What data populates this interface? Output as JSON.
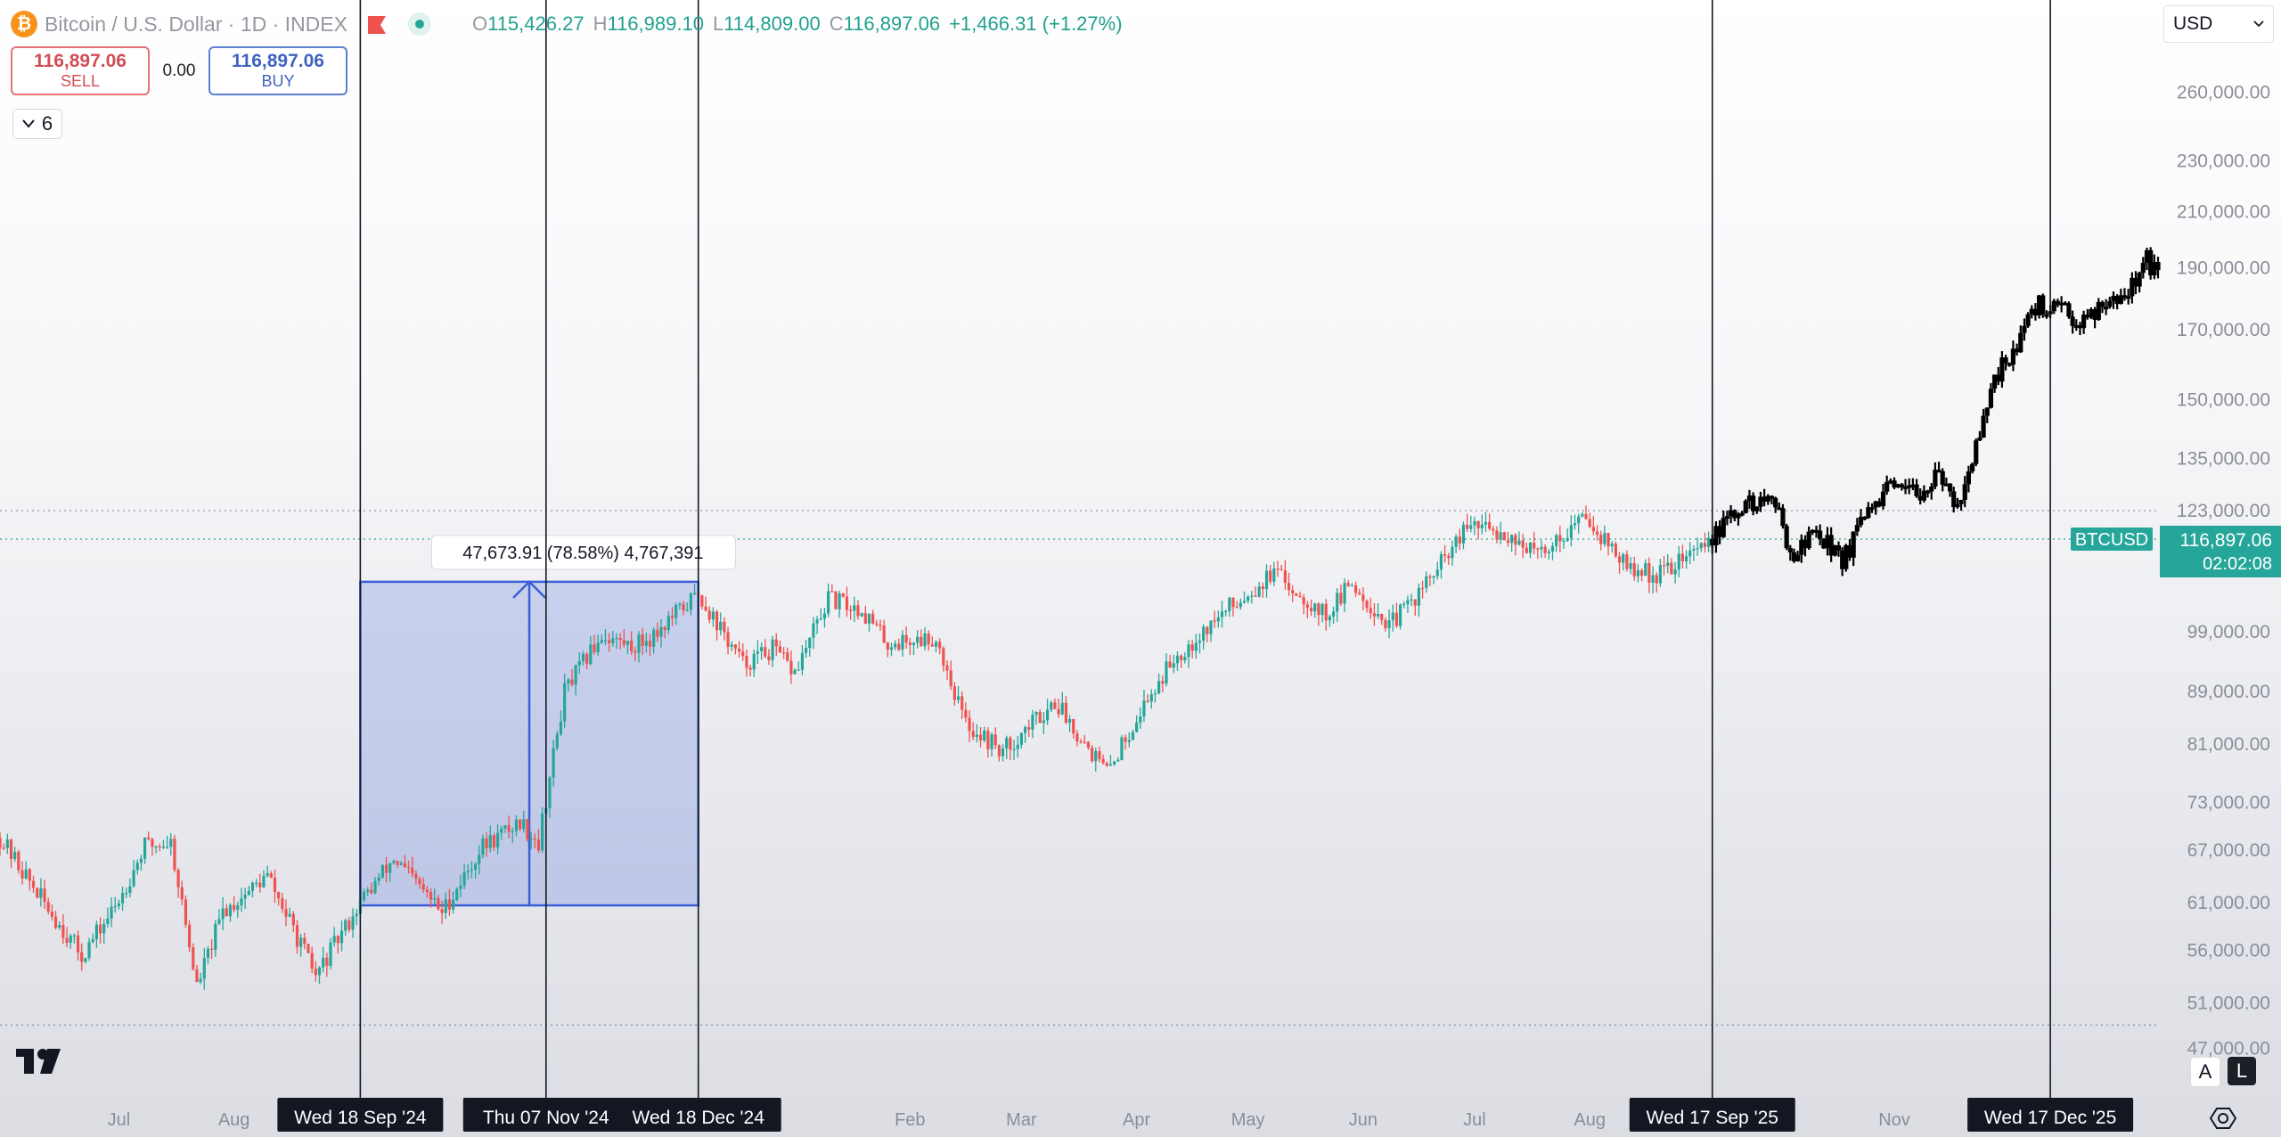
{
  "header": {
    "symbol_title": "Bitcoin / U.S. Dollar · 1D · INDEX",
    "btc_icon_glyph": "₿",
    "ohlc": [
      {
        "k": "O",
        "v": "115,426.27"
      },
      {
        "k": "H",
        "v": "116,989.10"
      },
      {
        "k": "L",
        "v": "114,809.00"
      },
      {
        "k": "C",
        "v": "116,897.06"
      }
    ],
    "change": "+1,466.31 (+1.27%)"
  },
  "trade": {
    "sell_price": "116,897.06",
    "sell_label": "SELL",
    "spread": "0.00",
    "buy_price": "116,897.06",
    "buy_label": "BUY"
  },
  "indicators": {
    "count": "6"
  },
  "currency": {
    "label": "USD"
  },
  "scale_buttons": {
    "auto": "A",
    "log": "L"
  },
  "colors": {
    "up": "#26a69a",
    "down": "#ef5350",
    "measure": "#3b5fd9",
    "projection": "#000000",
    "price_tag": "#26a69a"
  },
  "chart_data": {
    "type": "candlestick",
    "symbol": "BTCUSD",
    "interval": "1D",
    "y_scale": "log",
    "ylim": [
      46000,
      285000
    ],
    "y_ticks": [
      260000,
      230000,
      210000,
      190000,
      170000,
      150000,
      135000,
      123000,
      99000,
      89000,
      81000,
      73000,
      67000,
      61000,
      56000,
      51000,
      47000
    ],
    "y_tick_labels": [
      "260,000.00",
      "230,000.00",
      "210,000.00",
      "190,000.00",
      "170,000.00",
      "150,000.00",
      "135,000.00",
      "123,000.00",
      "99,000.00",
      "89,000.00",
      "81,000.00",
      "73,000.00",
      "67,000.00",
      "61,000.00",
      "56,000.00",
      "51,000.00",
      "47,000.00"
    ],
    "x_range": [
      "2024-06-13",
      "2026-01-15"
    ],
    "x_month_labels": [
      {
        "date": "2024-07-15",
        "label": "Jul"
      },
      {
        "date": "2024-08-15",
        "label": "Aug"
      },
      {
        "date": "2025-02-13",
        "label": "Feb"
      },
      {
        "date": "2025-03-15",
        "label": "Mar"
      },
      {
        "date": "2025-04-15",
        "label": "Apr"
      },
      {
        "date": "2025-05-15",
        "label": "May"
      },
      {
        "date": "2025-06-15",
        "label": "Jun"
      },
      {
        "date": "2025-07-15",
        "label": "Jul"
      },
      {
        "date": "2025-08-15",
        "label": "Aug"
      },
      {
        "date": "2025-11-05",
        "label": "Nov"
      }
    ],
    "vertical_markers": [
      {
        "date": "2024-09-18",
        "label": "Wed 18 Sep '24"
      },
      {
        "date": "2024-11-07",
        "label": "Thu 07 Nov '24"
      },
      {
        "date": "2024-12-18",
        "label": "Wed 18 Dec '24"
      },
      {
        "date": "2025-09-17",
        "label": "Wed 17 Sep '25"
      },
      {
        "date": "2025-12-17",
        "label": "Wed 17 Dec '25"
      }
    ],
    "horizontal_lines": [
      123000,
      49000
    ],
    "current_price": {
      "value": 116897.06,
      "label": "116,897.06",
      "countdown": "02:02:08",
      "tag": "BTCUSD"
    },
    "measure": {
      "from_date": "2024-09-18",
      "to_date": "2024-12-18",
      "low": 60700,
      "high": 108300,
      "label": "47,673.91 (78.58%) 4,767,391"
    },
    "price_path": [
      [
        "2024-06-13",
        68500
      ],
      [
        "2024-06-24",
        61500
      ],
      [
        "2024-07-05",
        55500
      ],
      [
        "2024-07-14",
        60500
      ],
      [
        "2024-07-22",
        67500
      ],
      [
        "2024-07-29",
        68000
      ],
      [
        "2024-08-05",
        52500
      ],
      [
        "2024-08-12",
        60000
      ],
      [
        "2024-08-24",
        64000
      ],
      [
        "2024-09-06",
        53500
      ],
      [
        "2024-09-18",
        61000
      ],
      [
        "2024-09-27",
        66000
      ],
      [
        "2024-10-10",
        60000
      ],
      [
        "2024-10-21",
        67500
      ],
      [
        "2024-10-31",
        70500
      ],
      [
        "2024-11-05",
        68000
      ],
      [
        "2024-11-12",
        89000
      ],
      [
        "2024-11-22",
        98500
      ],
      [
        "2024-11-30",
        96500
      ],
      [
        "2024-12-05",
        98000
      ],
      [
        "2024-12-18",
        106000
      ],
      [
        "2024-12-30",
        93500
      ],
      [
        "2025-01-07",
        96000
      ],
      [
        "2025-01-13",
        92000
      ],
      [
        "2025-01-22",
        105000
      ],
      [
        "2025-01-31",
        103000
      ],
      [
        "2025-02-07",
        97000
      ],
      [
        "2025-02-20",
        98000
      ],
      [
        "2025-02-28",
        84000
      ],
      [
        "2025-03-10",
        80000
      ],
      [
        "2025-03-24",
        87500
      ],
      [
        "2025-04-07",
        77000
      ],
      [
        "2025-04-15",
        85000
      ],
      [
        "2025-04-25",
        94500
      ],
      [
        "2025-05-10",
        103500
      ],
      [
        "2025-05-22",
        110000
      ],
      [
        "2025-06-05",
        102000
      ],
      [
        "2025-06-12",
        108000
      ],
      [
        "2025-06-22",
        100000
      ],
      [
        "2025-07-01",
        107000
      ],
      [
        "2025-07-14",
        120000
      ],
      [
        "2025-07-25",
        117500
      ],
      [
        "2025-08-01",
        113500
      ],
      [
        "2025-08-14",
        122000
      ],
      [
        "2025-08-25",
        111000
      ],
      [
        "2025-09-02",
        109500
      ],
      [
        "2025-09-17",
        116900
      ]
    ],
    "projection_path": [
      [
        "2025-09-17",
        116900
      ],
      [
        "2025-09-25",
        124000
      ],
      [
        "2025-10-03",
        125500
      ],
      [
        "2025-10-09",
        113500
      ],
      [
        "2025-10-15",
        119000
      ],
      [
        "2025-10-22",
        112500
      ],
      [
        "2025-10-28",
        121000
      ],
      [
        "2025-11-03",
        127500
      ],
      [
        "2025-11-10",
        126500
      ],
      [
        "2025-11-16",
        130500
      ],
      [
        "2025-11-22",
        125000
      ],
      [
        "2025-11-28",
        140000
      ],
      [
        "2025-12-03",
        158000
      ],
      [
        "2025-12-08",
        166000
      ],
      [
        "2025-12-14",
        178000
      ],
      [
        "2025-12-20",
        175500
      ],
      [
        "2025-12-26",
        173000
      ],
      [
        "2026-01-01",
        180000
      ],
      [
        "2026-01-07",
        182000
      ],
      [
        "2026-01-12",
        193000
      ],
      [
        "2026-01-15",
        186000
      ]
    ]
  }
}
